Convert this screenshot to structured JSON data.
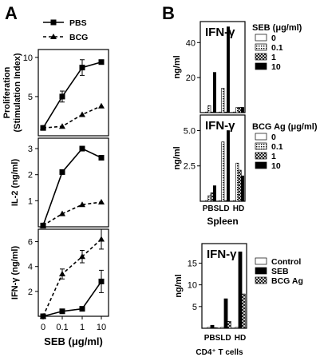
{
  "panel_a": {
    "letter": "A"
  },
  "panel_b": {
    "letter": "B"
  },
  "chart_data": [
    {
      "panel": "A-1",
      "type": "line",
      "ylabel": "Proliferation",
      "ylabel2": "(Stimulation Index)",
      "yticks": [
        "5",
        "10"
      ],
      "ylim": [
        0,
        11
      ],
      "x": [
        "0",
        "0.1",
        "1",
        "10"
      ],
      "series": [
        {
          "name": "PBS",
          "style": "solid",
          "marker": "square",
          "values": [
            1.0,
            5.0,
            8.7,
            9.4
          ],
          "err": [
            0,
            0.7,
            1.0,
            0
          ]
        },
        {
          "name": "BCG",
          "style": "dashed",
          "marker": "triangle",
          "values": [
            1.0,
            1.2,
            2.7,
            3.8
          ],
          "err": [
            0,
            0,
            0,
            0
          ]
        }
      ]
    },
    {
      "panel": "A-2",
      "type": "line",
      "ylabel": "IL-2 (ng/ml)",
      "yticks": [
        "1",
        "2",
        "3"
      ],
      "ylim": [
        0,
        3.4
      ],
      "x": [
        "0",
        "0.1",
        "1",
        "10"
      ],
      "series": [
        {
          "name": "PBS",
          "style": "solid",
          "marker": "square",
          "values": [
            0.05,
            2.1,
            3.0,
            2.65
          ],
          "err": [
            0,
            0,
            0,
            0
          ]
        },
        {
          "name": "BCG",
          "style": "dashed",
          "marker": "triangle",
          "values": [
            0.05,
            0.5,
            0.85,
            0.95
          ],
          "err": [
            0,
            0,
            0,
            0
          ]
        }
      ]
    },
    {
      "panel": "A-3",
      "type": "line",
      "ylabel": "IFN-γ (ng/ml)",
      "yticks": [
        "2",
        "4",
        "6"
      ],
      "ylim": [
        0,
        7
      ],
      "x": [
        "0",
        "0.1",
        "1",
        "10"
      ],
      "xticks": [
        "0",
        "0.1",
        "1",
        "10"
      ],
      "xlabel": "SEB (μg/ml)",
      "series": [
        {
          "name": "PBS",
          "style": "solid",
          "marker": "square",
          "values": [
            0.0,
            0.4,
            0.6,
            2.8
          ],
          "err": [
            0,
            0,
            0,
            0.9
          ]
        },
        {
          "name": "BCG",
          "style": "dashed",
          "marker": "triangle",
          "values": [
            0.0,
            3.4,
            4.8,
            6.2
          ],
          "err": [
            0,
            0.4,
            0.5,
            0.8
          ]
        }
      ]
    },
    {
      "panel": "B-1",
      "type": "bar",
      "title": "IFN-γ",
      "ylabel": "ng/ml",
      "yticks": [
        "20",
        "40"
      ],
      "ylim": [
        0,
        52
      ],
      "categories": [
        "PBS",
        "LD",
        "HD"
      ],
      "legend_title": "SEB (μg/ml)",
      "series": [
        {
          "name": "0",
          "pattern": "white",
          "values": [
            0.3,
            0.3,
            0.3
          ]
        },
        {
          "name": "0.1",
          "pattern": "dots",
          "values": [
            4,
            14,
            3
          ]
        },
        {
          "name": "1",
          "pattern": "cross",
          "values": [
            0.3,
            0.3,
            3
          ]
        },
        {
          "name": "10",
          "pattern": "black",
          "values": [
            23,
            49,
            3
          ]
        }
      ]
    },
    {
      "panel": "B-2",
      "type": "bar",
      "title": "IFN-γ",
      "ylabel": "ng/ml",
      "yticks": [
        "2.5",
        "5.0"
      ],
      "ylim": [
        0,
        6.1
      ],
      "categories": [
        "PBS",
        "LD",
        "HD"
      ],
      "xlabel": "Spleen",
      "legend_title": "BCG Ag (μg/ml)",
      "series": [
        {
          "name": "0",
          "pattern": "white",
          "values": [
            0.05,
            0.05,
            0.05
          ]
        },
        {
          "name": "0.1",
          "pattern": "dots",
          "values": [
            0.4,
            4.2,
            2.7
          ]
        },
        {
          "name": "1",
          "pattern": "cross",
          "values": [
            0.6,
            0.05,
            2.2
          ]
        },
        {
          "name": "10",
          "pattern": "black",
          "values": [
            1.1,
            5.0,
            1.8
          ]
        }
      ]
    },
    {
      "panel": "B-3",
      "type": "bar",
      "title": "IFN-γ",
      "ylabel": "ng/ml",
      "yticks": [
        "5",
        "10",
        "15"
      ],
      "ylim": [
        0,
        19.5
      ],
      "categories": [
        "PBS",
        "LD",
        "HD"
      ],
      "xlabel": "CD4⁺ T cells",
      "series": [
        {
          "name": "Control",
          "pattern": "white",
          "values": [
            0.2,
            0.2,
            0.2
          ]
        },
        {
          "name": "SEB",
          "pattern": "black",
          "values": [
            0.7,
            6.8,
            17.6
          ]
        },
        {
          "name": "BCG Ag",
          "pattern": "cross",
          "values": [
            0.1,
            1.6,
            7.9
          ]
        }
      ]
    }
  ]
}
